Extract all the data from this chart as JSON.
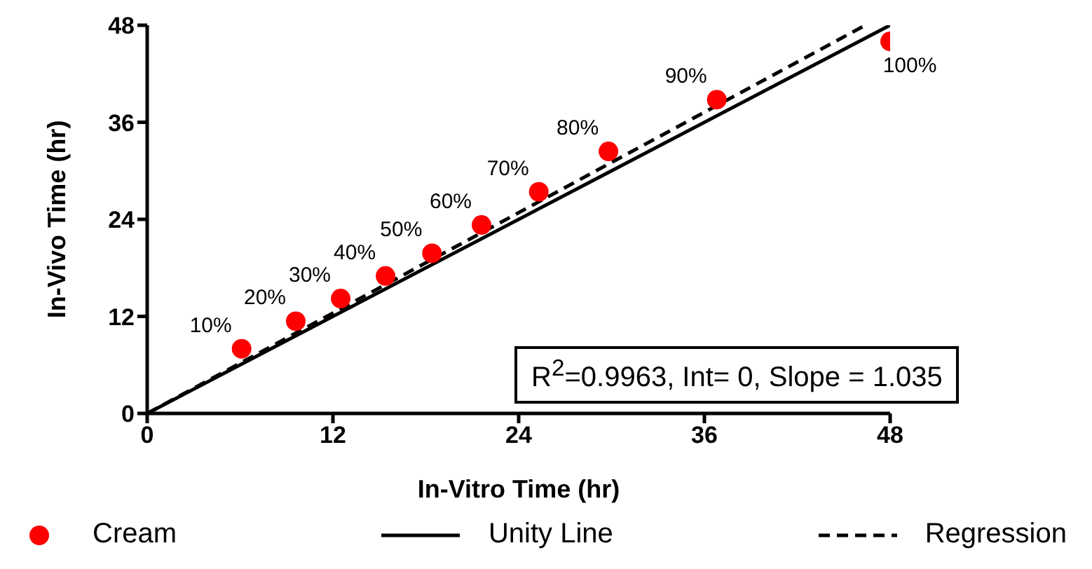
{
  "chart_data": {
    "type": "scatter",
    "xlabel": "In-Vitro Time (hr)",
    "ylabel": "In-Vivo Time (hr)",
    "xlim": [
      0,
      48
    ],
    "ylim": [
      0,
      48
    ],
    "xticks": [
      0,
      12,
      24,
      36,
      48
    ],
    "yticks": [
      0,
      12,
      24,
      36,
      48
    ],
    "legend": "bottom",
    "annotations": [
      "R$^{2}$=0.9963, Int= 0, Slope = 1.035",
      {
        "text": "10%",
        "x": 6.1,
        "y": 8.0
      },
      {
        "text": "20%",
        "x": 9.6,
        "y": 11.4
      },
      {
        "text": "30%",
        "x": 12.5,
        "y": 14.2
      },
      {
        "text": "40%",
        "x": 15.4,
        "y": 17.0
      },
      {
        "text": "50%",
        "x": 18.4,
        "y": 19.8
      },
      {
        "text": "60%",
        "x": 21.6,
        "y": 23.3
      },
      {
        "text": "70%",
        "x": 25.3,
        "y": 27.4
      },
      {
        "text": "80%",
        "x": 29.8,
        "y": 32.4
      },
      {
        "text": "90%",
        "x": 36.8,
        "y": 38.8
      },
      {
        "text": "100%",
        "x": 48.0,
        "y": 46.0
      }
    ],
    "series": [
      {
        "name": "Cream",
        "color": "#ff0000",
        "marker": "circle",
        "x": [
          6.1,
          9.6,
          12.5,
          15.4,
          18.4,
          21.6,
          25.3,
          29.8,
          36.8,
          48.0
        ],
        "values": [
          8.0,
          11.4,
          14.2,
          17.0,
          19.8,
          23.3,
          27.4,
          32.4,
          38.8,
          46.0
        ]
      },
      {
        "name": "Unity Line",
        "type": "line",
        "color": "#000000",
        "line_style": "solid",
        "marker": "none",
        "x": [
          0,
          48
        ],
        "values": [
          0,
          48
        ]
      },
      {
        "name": "Regression",
        "type": "line",
        "color": "#000000",
        "line_style": "dashed",
        "marker": "none",
        "x": [
          0,
          46.4
        ],
        "values": [
          0,
          48
        ]
      }
    ]
  }
}
